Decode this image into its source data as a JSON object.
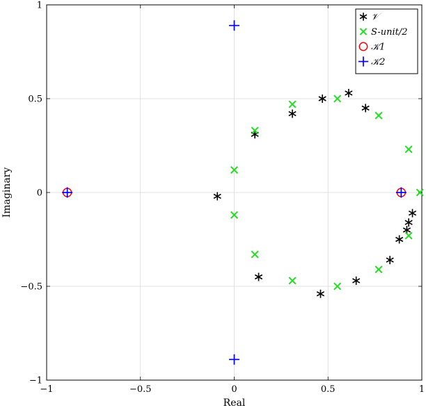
{
  "chart_data": {
    "type": "scatter",
    "xlabel": "Real",
    "ylabel": "Imaginary",
    "xlim": [
      -1,
      1
    ],
    "ylim": [
      -1,
      1
    ],
    "x_ticks": [
      -1,
      -0.5,
      0,
      0.5,
      1
    ],
    "y_ticks": [
      -1,
      -0.5,
      0,
      0.5,
      1
    ],
    "x_tick_labels": [
      "−1",
      "−0.5",
      "0",
      "0.5",
      "1"
    ],
    "y_tick_labels": [
      "−1",
      "−0.5",
      "0",
      "0.5",
      "1"
    ],
    "grid": true,
    "legend_position": "top-right",
    "series": [
      {
        "name": "𝒱",
        "marker": "asterisk",
        "color": "#000000",
        "points": [
          [
            -0.09,
            -0.02
          ],
          [
            0.11,
            0.31
          ],
          [
            0.31,
            0.42
          ],
          [
            0.47,
            0.5
          ],
          [
            0.61,
            0.53
          ],
          [
            0.7,
            0.45
          ],
          [
            0.13,
            -0.45
          ],
          [
            0.46,
            -0.54
          ],
          [
            0.65,
            -0.47
          ],
          [
            0.83,
            -0.36
          ],
          [
            0.88,
            -0.25
          ],
          [
            0.92,
            -0.2
          ],
          [
            0.93,
            -0.16
          ],
          [
            0.95,
            -0.11
          ]
        ]
      },
      {
        "name": "S-unit/2",
        "marker": "x",
        "color": "#22dd22",
        "points": [
          [
            0.0,
            0.12
          ],
          [
            0.0,
            -0.12
          ],
          [
            0.11,
            0.33
          ],
          [
            0.11,
            -0.33
          ],
          [
            0.31,
            0.47
          ],
          [
            0.31,
            -0.47
          ],
          [
            0.55,
            0.5
          ],
          [
            0.55,
            -0.5
          ],
          [
            0.77,
            0.41
          ],
          [
            0.77,
            -0.41
          ],
          [
            0.93,
            0.23
          ],
          [
            0.93,
            -0.23
          ],
          [
            0.99,
            0.0
          ]
        ]
      },
      {
        "name": "𝒦1",
        "marker": "circle",
        "color": "#ff0000",
        "points": [
          [
            -0.89,
            0.0
          ],
          [
            0.89,
            0.0
          ]
        ]
      },
      {
        "name": "𝒦2",
        "marker": "plus",
        "color": "#0000ff",
        "points": [
          [
            -0.89,
            0.0
          ],
          [
            0.89,
            0.0
          ],
          [
            0.0,
            0.89
          ],
          [
            0.0,
            -0.89
          ]
        ]
      }
    ]
  }
}
